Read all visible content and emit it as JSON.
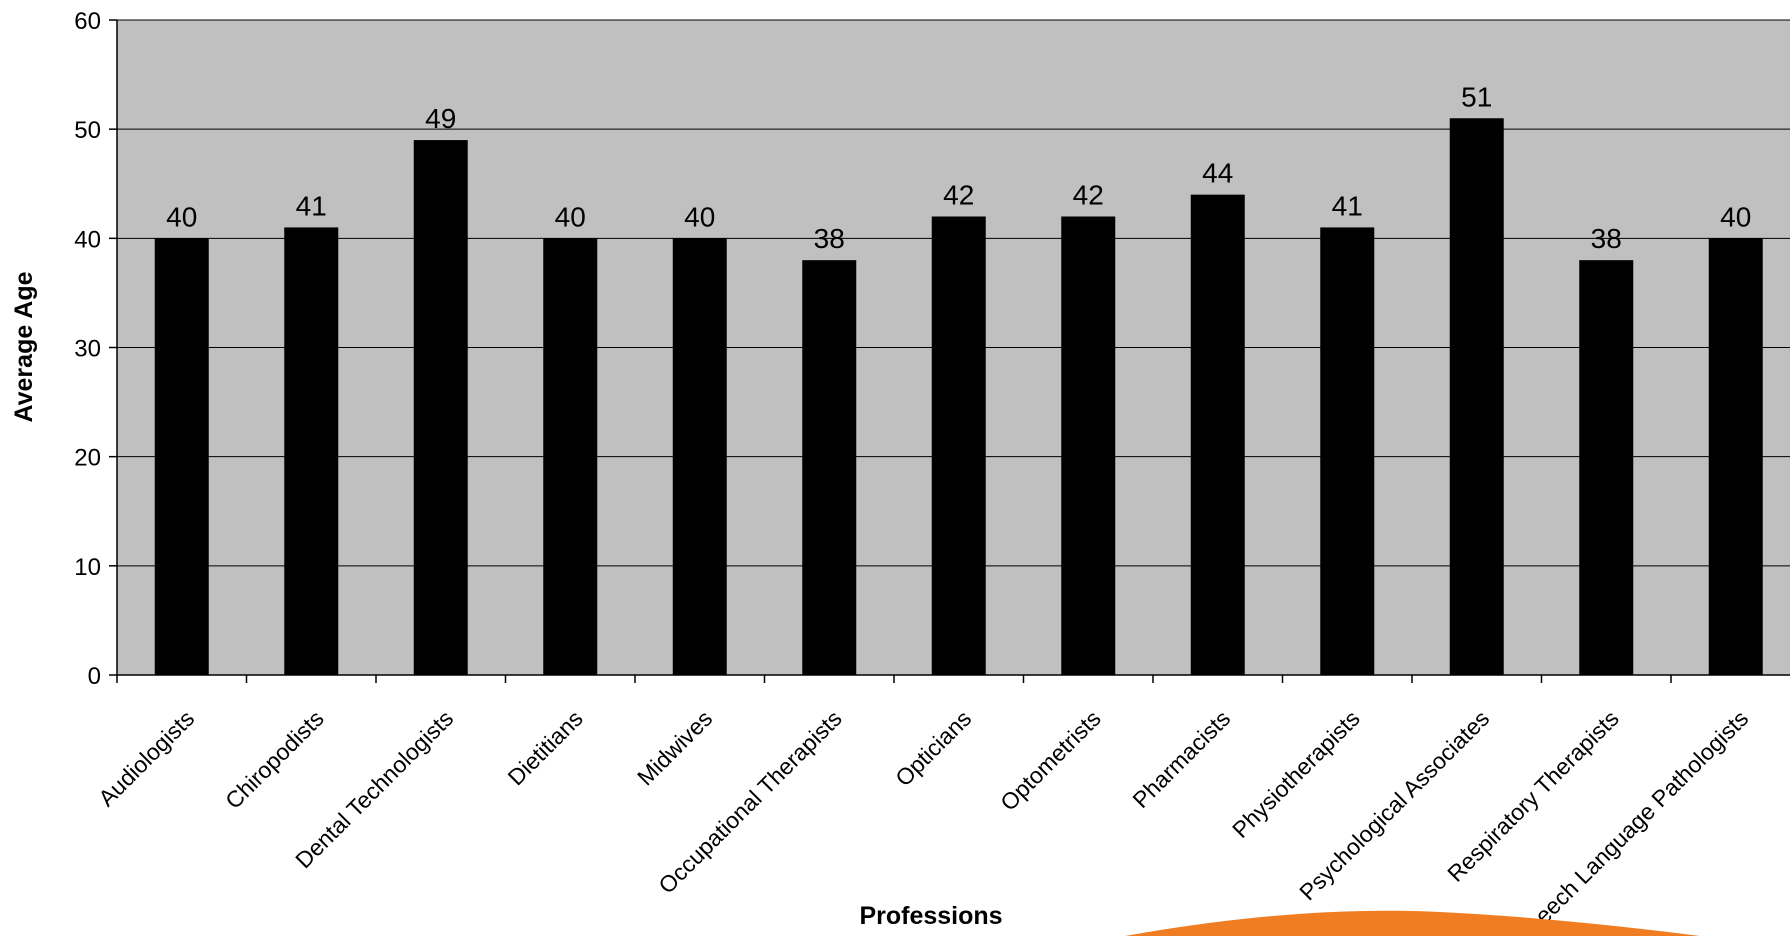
{
  "chart_data": {
    "type": "bar",
    "xlabel": "Professions",
    "ylabel": "Average Age",
    "ylim": [
      0,
      60
    ],
    "yticks": [
      0,
      10,
      20,
      30,
      40,
      50,
      60
    ],
    "grid": true,
    "legend": "none",
    "categories": [
      "Audiologists",
      "Chiropodists",
      "Dental Technologists",
      "Dietitians",
      "Midwives",
      "Occupational Therapists",
      "Opticians",
      "Optometrists",
      "Pharmacists",
      "Physiotherapists",
      "Psychological Associates",
      "Respiratory Therapists",
      "Speech Language Pathologists"
    ],
    "values": [
      40,
      41,
      49,
      40,
      40,
      38,
      42,
      42,
      44,
      41,
      51,
      38,
      40
    ],
    "data_labels": [
      "40",
      "41",
      "49",
      "40",
      "40",
      "38",
      "42",
      "42",
      "44",
      "41",
      "51",
      "38",
      "40"
    ],
    "colors": {
      "plot_background": "#c0c0c0",
      "bar": "#000000",
      "gridline": "#000000",
      "decoration": "#f07d22"
    }
  }
}
